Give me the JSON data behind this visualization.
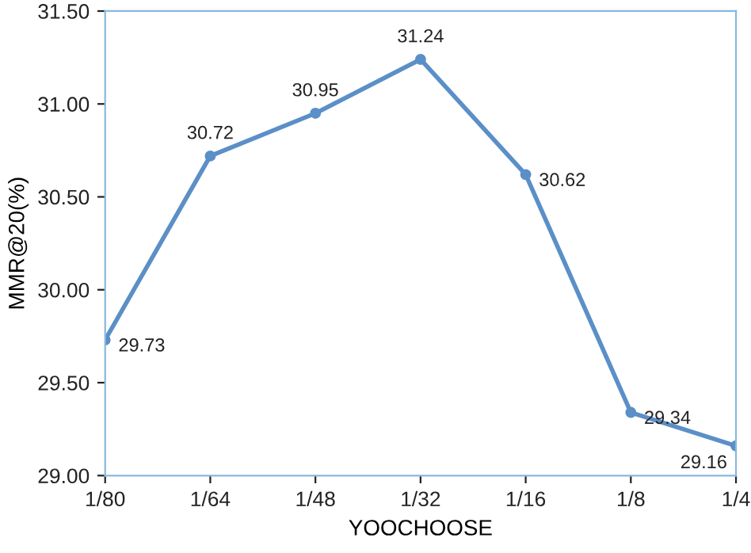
{
  "chart_data": {
    "type": "line",
    "xlabel": "YOOCHOOSE",
    "ylabel": "MMR@20(%)",
    "categories": [
      "1/80",
      "1/64",
      "1/48",
      "1/32",
      "1/16",
      "1/8",
      "1/4"
    ],
    "series": [
      {
        "color": "#5b8fc7",
        "values": [
          29.73,
          30.72,
          30.95,
          31.24,
          30.62,
          29.34,
          29.16
        ]
      }
    ],
    "ylim": [
      29.0,
      31.5
    ],
    "yticks": [
      {
        "value": 29.0,
        "label": "29.00"
      },
      {
        "value": 29.5,
        "label": "29.50"
      },
      {
        "value": 30.0,
        "label": "30.00"
      },
      {
        "value": 30.5,
        "label": "30.50"
      },
      {
        "value": 31.0,
        "label": "31.00"
      },
      {
        "value": 31.5,
        "label": "31.50"
      }
    ],
    "data_labels": true,
    "marker": "circle",
    "line_style": "solid",
    "grid": false,
    "legend": false
  }
}
